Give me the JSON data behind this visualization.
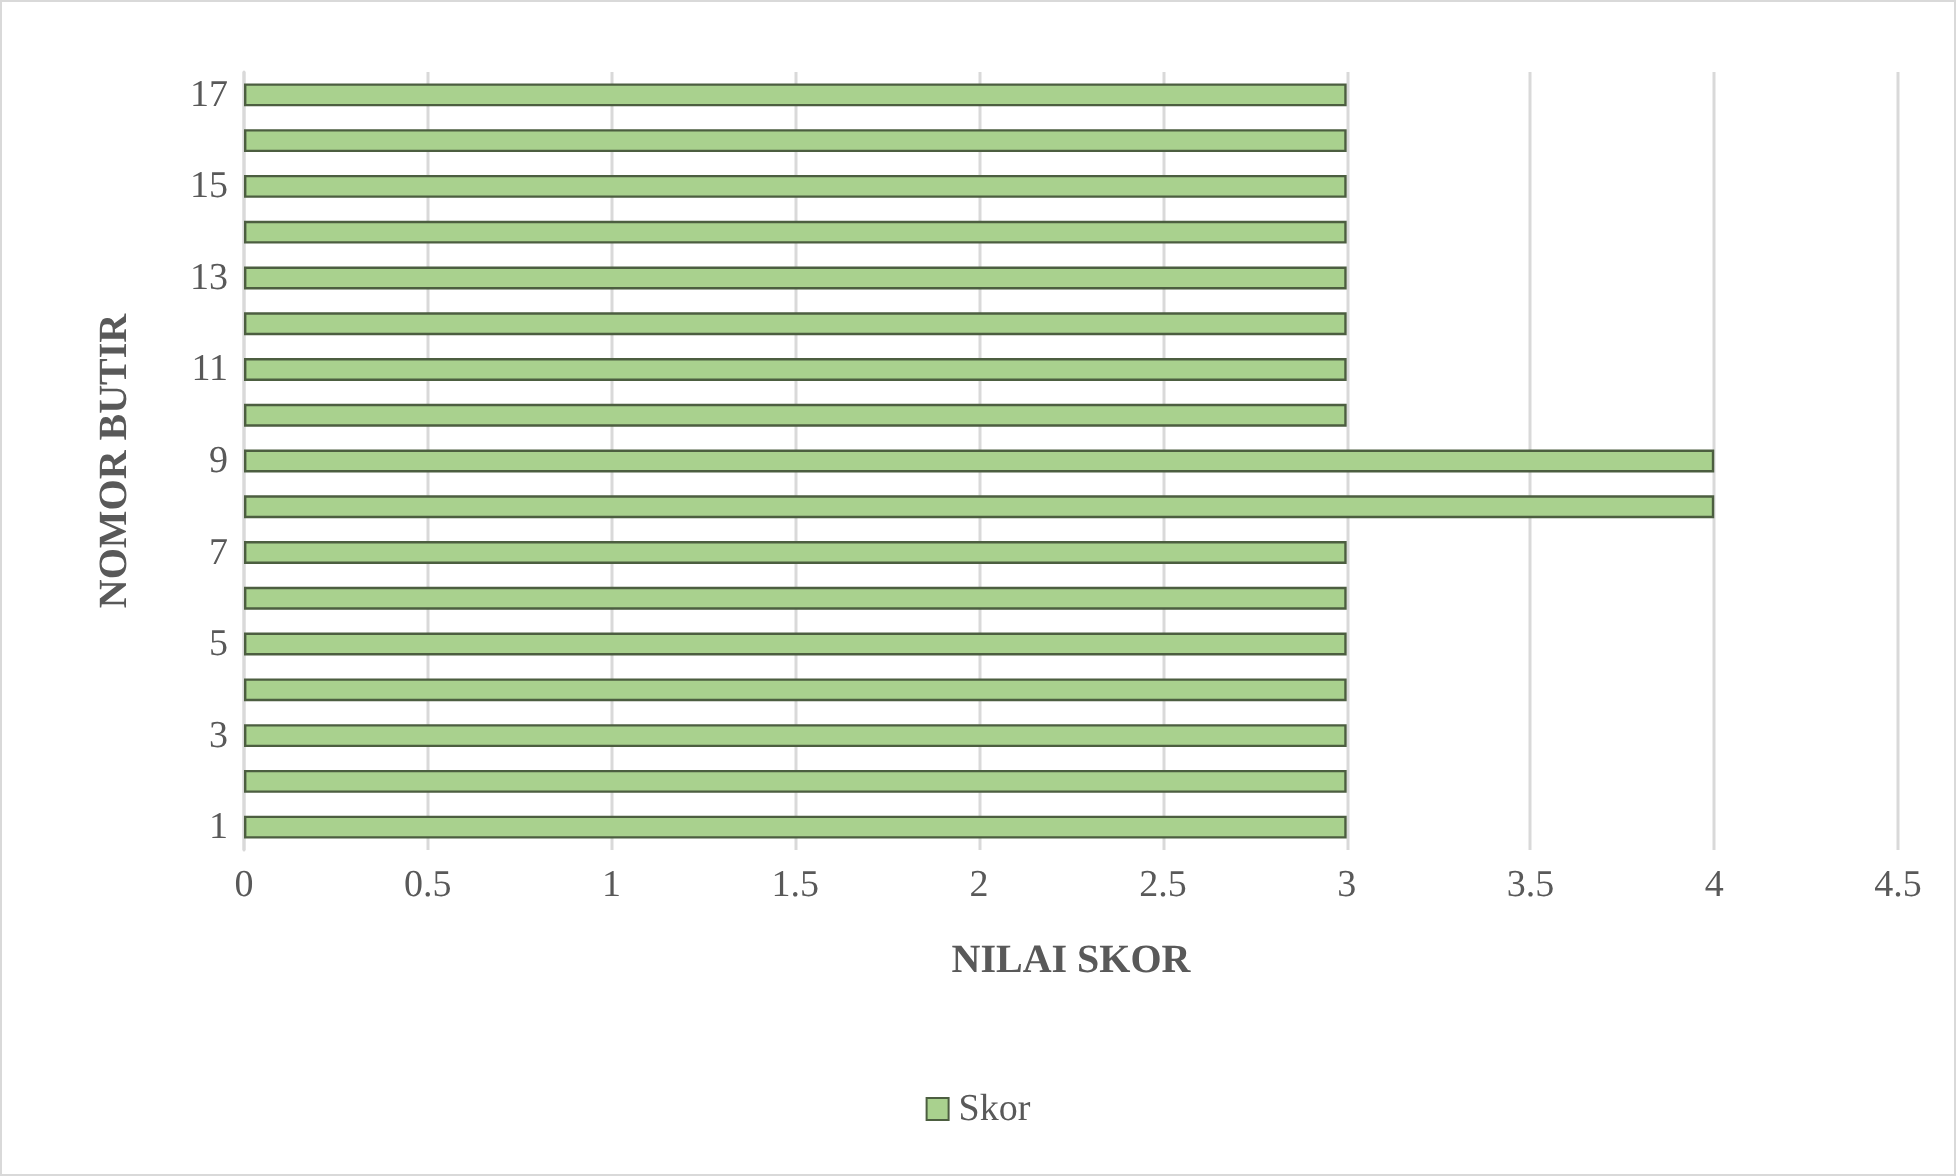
{
  "chart_data": {
    "type": "bar",
    "orientation": "horizontal",
    "xlabel": "NILAI SKOR",
    "ylabel": "NOMOR BUTIR",
    "categories": [
      "17",
      null,
      "15",
      null,
      "13",
      null,
      "11",
      null,
      "9",
      null,
      "7",
      null,
      "5",
      null,
      "3",
      null,
      "1"
    ],
    "series": [
      {
        "name": "Skor",
        "color": "#a9d18e",
        "values": [
          3,
          3,
          3,
          3,
          3,
          3,
          3,
          3,
          4,
          4,
          3,
          3,
          3,
          3,
          3,
          3,
          3
        ]
      }
    ],
    "xlim": [
      0,
      4.5
    ],
    "xticks": [
      0,
      0.5,
      1,
      1.5,
      2,
      2.5,
      3,
      3.5,
      4,
      4.5
    ],
    "grid": "x",
    "legend": "bottom"
  }
}
